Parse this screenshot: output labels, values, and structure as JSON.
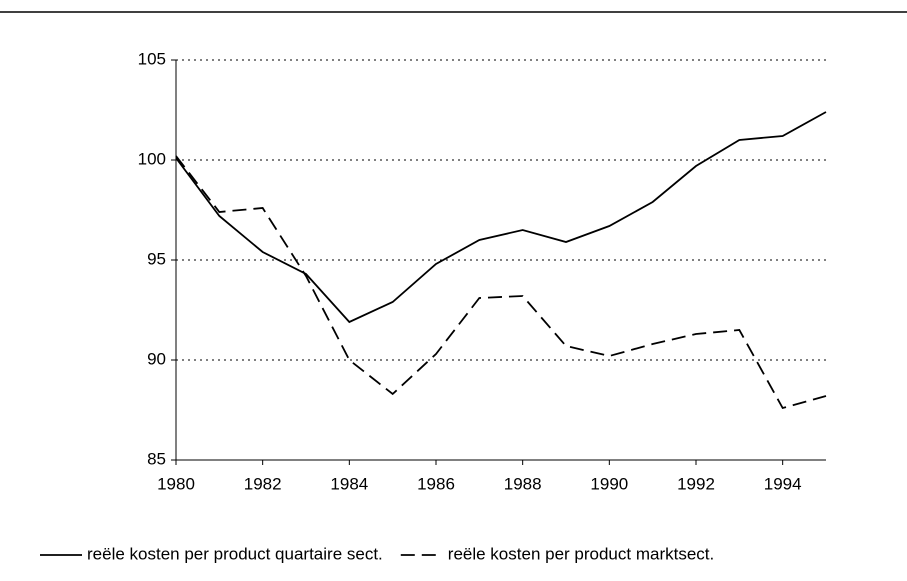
{
  "chart_data": {
    "type": "line",
    "x": [
      1980,
      1981,
      1982,
      1983,
      1984,
      1985,
      1986,
      1987,
      1988,
      1989,
      1990,
      1991,
      1992,
      1993,
      1994,
      1995
    ],
    "series": [
      {
        "name": "reële kosten per product quartaire sect.",
        "color": "#000000",
        "dash": false,
        "values": [
          100.1,
          97.2,
          95.4,
          94.3,
          91.9,
          92.9,
          94.8,
          96.0,
          96.5,
          95.9,
          96.7,
          97.9,
          99.7,
          101.0,
          101.2,
          102.4
        ]
      },
      {
        "name": "reële kosten per product marktsect.",
        "color": "#000000",
        "dash": true,
        "values": [
          100.2,
          97.4,
          97.6,
          94.2,
          90.0,
          88.3,
          90.3,
          93.1,
          93.2,
          90.7,
          90.2,
          90.8,
          91.3,
          91.5,
          87.6,
          88.2
        ]
      }
    ],
    "xlim": [
      1980,
      1995
    ],
    "xticks": [
      1980,
      1982,
      1984,
      1986,
      1988,
      1990,
      1992,
      1994
    ],
    "ylim": [
      85,
      105
    ],
    "yticks": [
      85,
      90,
      95,
      100,
      105
    ],
    "grid": true,
    "legend": "bottom"
  }
}
